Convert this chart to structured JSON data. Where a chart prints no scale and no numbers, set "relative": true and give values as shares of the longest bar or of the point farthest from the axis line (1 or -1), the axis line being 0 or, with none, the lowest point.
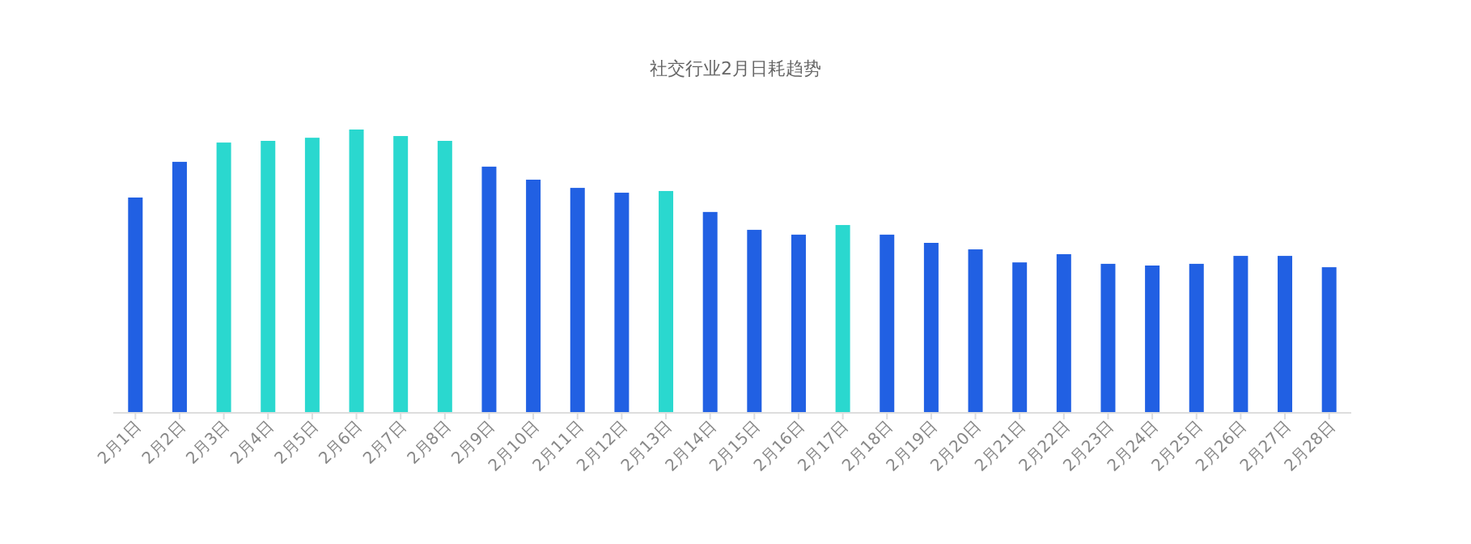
{
  "chart_data": {
    "type": "bar",
    "title": "社交行业2月日耗趋势",
    "relative": true,
    "categories": [
      "2月1日",
      "2月2日",
      "2月3日",
      "2月4日",
      "2月5日",
      "2月6日",
      "2月7日",
      "2月8日",
      "2月9日",
      "2月10日",
      "2月11日",
      "2月12日",
      "2月13日",
      "2月14日",
      "2月15日",
      "2月16日",
      "2月17日",
      "2月18日",
      "2月19日",
      "2月20日",
      "2月21日",
      "2月22日",
      "2月23日",
      "2月24日",
      "2月25日",
      "2月26日",
      "2月27日",
      "2月28日"
    ],
    "values": [
      0.76,
      0.886,
      0.954,
      0.96,
      0.971,
      1,
      0.977,
      0.96,
      0.869,
      0.823,
      0.794,
      0.777,
      0.783,
      0.709,
      0.646,
      0.629,
      0.663,
      0.629,
      0.6,
      0.577,
      0.531,
      0.56,
      0.526,
      0.52,
      0.526,
      0.554,
      0.554,
      0.514
    ],
    "colors": [
      "#2160e3",
      "#2160e3",
      "#2ad8cf",
      "#2ad8cf",
      "#2ad8cf",
      "#2ad8cf",
      "#2ad8cf",
      "#2ad8cf",
      "#2160e3",
      "#2160e3",
      "#2160e3",
      "#2160e3",
      "#2ad8cf",
      "#2160e3",
      "#2160e3",
      "#2160e3",
      "#2ad8cf",
      "#2160e3",
      "#2160e3",
      "#2160e3",
      "#2160e3",
      "#2160e3",
      "#2160e3",
      "#2160e3",
      "#2160e3",
      "#2160e3",
      "#2160e3",
      "#2160e3"
    ]
  }
}
